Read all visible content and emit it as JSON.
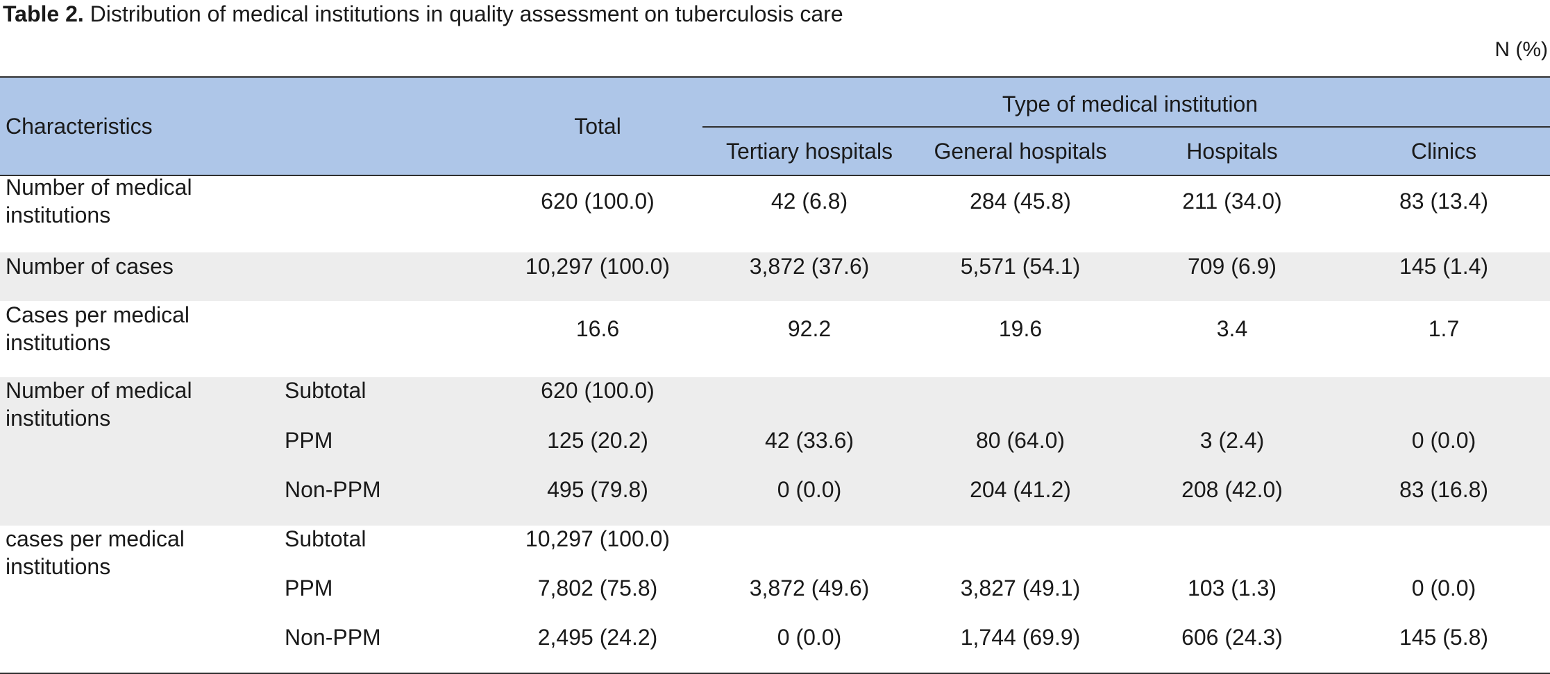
{
  "title": {
    "label": "Table 2.",
    "text": "Distribution of medical institutions in quality assessment on tuberculosis care"
  },
  "unit": "N (%)",
  "header": {
    "characteristics": "Characteristics",
    "total": "Total",
    "group": "Type of medical institution",
    "types": [
      "Tertiary hospitals",
      "General hospitals",
      "Hospitals",
      "Clinics"
    ]
  },
  "rows": [
    {
      "label": [
        "Number of medical",
        "institutions"
      ],
      "sub": "",
      "values": [
        "620 (100.0)",
        "42 (6.8)",
        "284 (45.8)",
        "211 (34.0)",
        "83 (13.4)"
      ]
    },
    {
      "label": [
        "Number of cases"
      ],
      "sub": "",
      "values": [
        "10,297 (100.0)",
        "3,872 (37.6)",
        "5,571 (54.1)",
        "709 (6.9)",
        "145 (1.4)"
      ]
    },
    {
      "label": [
        "Cases per medical",
        "institutions"
      ],
      "sub": "",
      "values": [
        "16.6",
        "92.2",
        "19.6",
        "3.4",
        "1.7"
      ]
    },
    {
      "label": [
        "Number of medical",
        "institutions"
      ],
      "sub": "Subtotal",
      "values": [
        "620 (100.0)",
        "",
        "",
        "",
        ""
      ]
    },
    {
      "label": [],
      "sub": "PPM",
      "values": [
        "125 (20.2)",
        "42 (33.6)",
        "80 (64.0)",
        "3 (2.4)",
        "0 (0.0)"
      ]
    },
    {
      "label": [],
      "sub": "Non-PPM",
      "values": [
        "495 (79.8)",
        "0 (0.0)",
        "204 (41.2)",
        "208 (42.0)",
        "83 (16.8)"
      ]
    },
    {
      "label": [
        "cases per medical",
        "institutions"
      ],
      "sub": "Subtotal",
      "values": [
        "10,297 (100.0)",
        "",
        "",
        "",
        ""
      ]
    },
    {
      "label": [],
      "sub": "PPM",
      "values": [
        "7,802 (75.8)",
        "3,872 (49.6)",
        "3,827 (49.1)",
        "103 (1.3)",
        "0 (0.0)"
      ]
    },
    {
      "label": [],
      "sub": "Non-PPM",
      "values": [
        "2,495 (24.2)",
        "0 (0.0)",
        "1,744 (69.9)",
        "606 (24.3)",
        "145 (5.8)"
      ]
    }
  ]
}
